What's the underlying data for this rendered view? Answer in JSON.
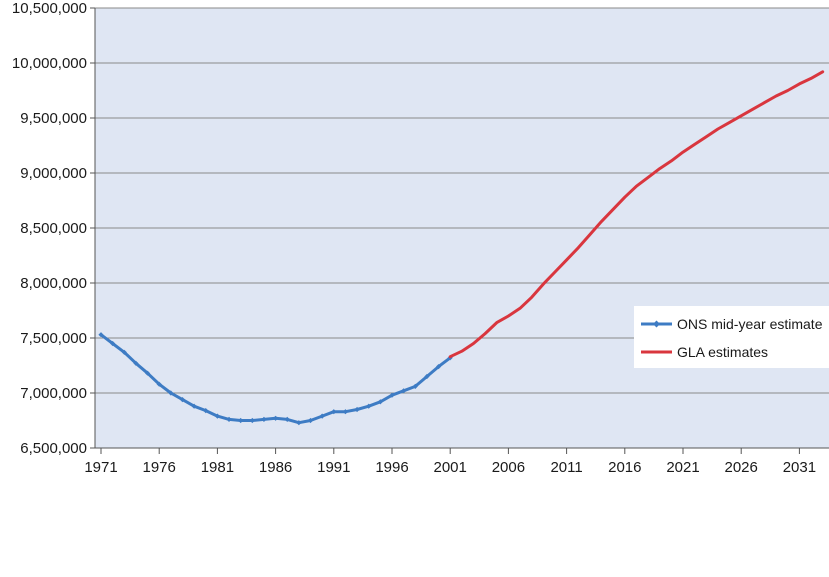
{
  "chart_data": {
    "type": "line",
    "title": "",
    "xlabel": "",
    "ylabel": "",
    "x_ticks": [
      "1971",
      "1976",
      "1981",
      "1986",
      "1991",
      "1996",
      "2001",
      "2006",
      "2011",
      "2016",
      "2021",
      "2026",
      "2031"
    ],
    "y_ticks": [
      "6,500,000",
      "7,000,000",
      "7,500,000",
      "8,000,000",
      "8,500,000",
      "9,000,000",
      "9,500,000",
      "10,000,000",
      "10,500,000"
    ],
    "xlim": [
      1971,
      2034
    ],
    "ylim": [
      6500000,
      10500000
    ],
    "grid": "horizontal",
    "background": "#dfe6f3",
    "legend_position": "right",
    "series": [
      {
        "name": "ONS mid-year estimate",
        "color": "#3e7cc4",
        "marker": "diamond",
        "x": [
          1971,
          1972,
          1973,
          1974,
          1975,
          1976,
          1977,
          1978,
          1979,
          1980,
          1981,
          1982,
          1983,
          1984,
          1985,
          1986,
          1987,
          1988,
          1989,
          1990,
          1991,
          1992,
          1993,
          1994,
          1995,
          1996,
          1997,
          1998,
          1999,
          2000,
          2001
        ],
        "y": [
          7530000,
          7450000,
          7370000,
          7270000,
          7180000,
          7080000,
          7000000,
          6940000,
          6880000,
          6840000,
          6790000,
          6760000,
          6750000,
          6750000,
          6760000,
          6770000,
          6760000,
          6730000,
          6750000,
          6790000,
          6830000,
          6830000,
          6850000,
          6880000,
          6920000,
          6980000,
          7020000,
          7060000,
          7150000,
          7240000,
          7320000
        ]
      },
      {
        "name": "GLA estimates",
        "color": "#d9363e",
        "marker": "none",
        "x": [
          2001,
          2002,
          2003,
          2004,
          2005,
          2006,
          2007,
          2008,
          2009,
          2010,
          2011,
          2012,
          2013,
          2014,
          2015,
          2016,
          2017,
          2018,
          2019,
          2020,
          2021,
          2022,
          2023,
          2024,
          2025,
          2026,
          2027,
          2028,
          2029,
          2030,
          2031,
          2032,
          2033,
          2034
        ],
        "y": [
          7330000,
          7380000,
          7450000,
          7540000,
          7640000,
          7700000,
          7770000,
          7870000,
          7990000,
          8100000,
          8210000,
          8320000,
          8440000,
          8560000,
          8670000,
          8780000,
          8880000,
          8960000,
          9040000,
          9110000,
          9190000,
          9260000,
          9330000,
          9400000,
          9460000,
          9520000,
          9580000,
          9640000,
          9700000,
          9750000,
          9810000,
          9860000,
          9920000,
          9970000
        ]
      }
    ]
  }
}
